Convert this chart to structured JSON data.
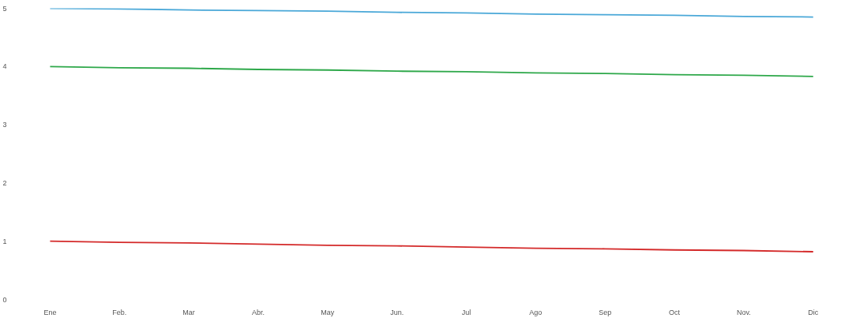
{
  "chart_data": {
    "type": "line",
    "categories": [
      "Ene",
      "Feb.",
      "Mar",
      "Abr.",
      "May",
      "Jun.",
      "Jul",
      "Ago",
      "Sep",
      "Oct",
      "Nov.",
      "Dic"
    ],
    "series": [
      {
        "color": "#4aa8d8",
        "values": [
          5,
          4.99,
          4.97,
          4.96,
          4.95,
          4.93,
          4.92,
          4.9,
          4.89,
          4.88,
          4.86,
          4.85
        ]
      },
      {
        "color": "#2ea84a",
        "values": [
          4,
          3.98,
          3.97,
          3.95,
          3.94,
          3.92,
          3.91,
          3.89,
          3.88,
          3.86,
          3.85,
          3.83
        ]
      },
      {
        "color": "#d42a2a",
        "values": [
          1,
          0.98,
          0.97,
          0.95,
          0.93,
          0.92,
          0.9,
          0.88,
          0.87,
          0.85,
          0.84,
          0.82
        ]
      }
    ],
    "ylim": [
      0,
      5
    ],
    "yticks": [
      0,
      1,
      2,
      3,
      4,
      5
    ],
    "line_style": "solid"
  }
}
